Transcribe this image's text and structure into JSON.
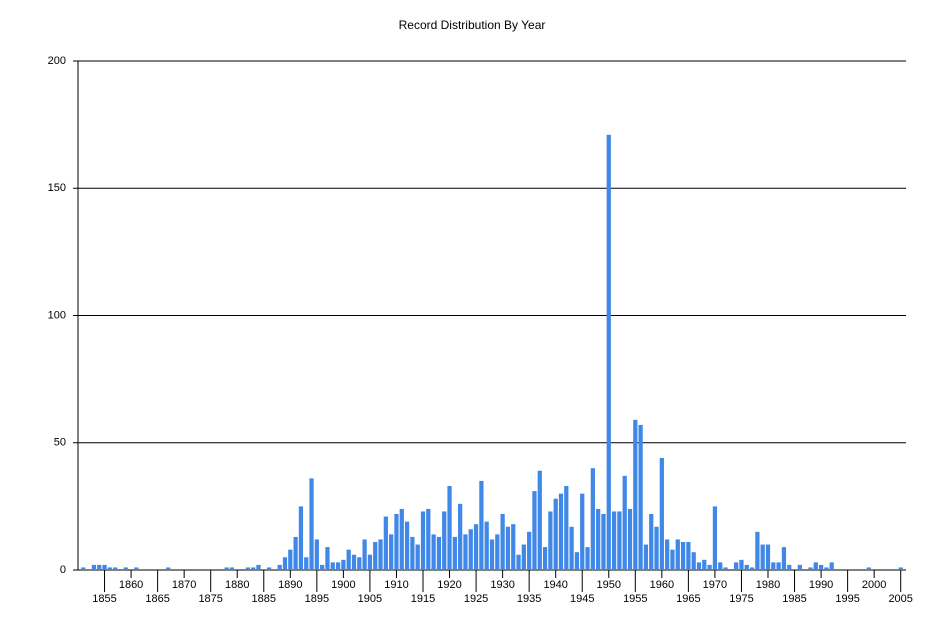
{
  "chart_data": {
    "type": "bar",
    "title": "Record Distribution By Year",
    "x": [
      1851,
      1853,
      1854,
      1855,
      1856,
      1857,
      1859,
      1861,
      1867,
      1878,
      1879,
      1882,
      1883,
      1884,
      1886,
      1888,
      1889,
      1890,
      1891,
      1892,
      1893,
      1894,
      1895,
      1896,
      1897,
      1898,
      1899,
      1900,
      1901,
      1902,
      1903,
      1904,
      1905,
      1906,
      1907,
      1908,
      1909,
      1910,
      1911,
      1912,
      1913,
      1914,
      1915,
      1916,
      1917,
      1918,
      1919,
      1920,
      1921,
      1922,
      1923,
      1924,
      1925,
      1926,
      1927,
      1928,
      1929,
      1930,
      1931,
      1932,
      1933,
      1934,
      1935,
      1936,
      1937,
      1938,
      1939,
      1940,
      1941,
      1942,
      1943,
      1944,
      1945,
      1946,
      1947,
      1948,
      1949,
      1950,
      1951,
      1952,
      1953,
      1954,
      1955,
      1956,
      1957,
      1958,
      1959,
      1960,
      1961,
      1962,
      1963,
      1964,
      1965,
      1966,
      1967,
      1968,
      1969,
      1970,
      1971,
      1972,
      1974,
      1975,
      1976,
      1977,
      1978,
      1979,
      1980,
      1981,
      1982,
      1983,
      1984,
      1986,
      1988,
      1989,
      1990,
      1991,
      1992,
      1999,
      2005
    ],
    "values": [
      1,
      2,
      2,
      2,
      1,
      1,
      1,
      1,
      1,
      1,
      1,
      1,
      1,
      2,
      1,
      2,
      5,
      8,
      13,
      25,
      5,
      36,
      12,
      2,
      9,
      3,
      3,
      4,
      8,
      6,
      5,
      12,
      6,
      11,
      12,
      21,
      14,
      22,
      24,
      19,
      13,
      10,
      23,
      24,
      14,
      13,
      23,
      33,
      13,
      26,
      14,
      16,
      18,
      35,
      19,
      12,
      14,
      22,
      17,
      18,
      6,
      10,
      15,
      31,
      39,
      9,
      23,
      28,
      30,
      33,
      17,
      7,
      30,
      9,
      40,
      24,
      22,
      171,
      23,
      23,
      37,
      24,
      59,
      57,
      10,
      22,
      17,
      44,
      12,
      8,
      12,
      11,
      11,
      7,
      3,
      4,
      2,
      25,
      3,
      1,
      3,
      4,
      2,
      1,
      15,
      10,
      10,
      3,
      3,
      9,
      2,
      2,
      1,
      3,
      2,
      1,
      3,
      1,
      1
    ],
    "color": "#4088e8",
    "xlim": [
      1850,
      2006
    ],
    "xticks": [
      1855,
      1860,
      1865,
      1870,
      1875,
      1880,
      1885,
      1890,
      1895,
      1900,
      1905,
      1910,
      1915,
      1920,
      1925,
      1930,
      1935,
      1940,
      1945,
      1950,
      1955,
      1960,
      1965,
      1970,
      1975,
      1980,
      1985,
      1990,
      1995,
      2000,
      2005
    ],
    "ylim": [
      0,
      200
    ],
    "yticks": [
      0,
      50,
      100,
      150,
      200
    ],
    "grid": true
  }
}
